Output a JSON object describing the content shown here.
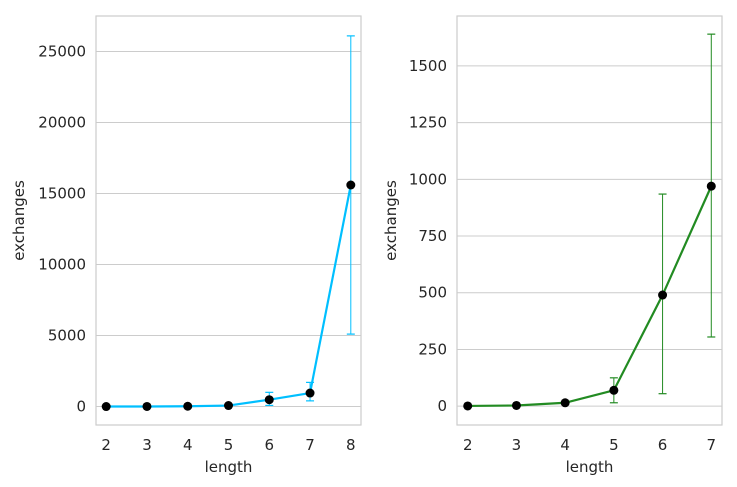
{
  "chart_data": [
    {
      "type": "line",
      "xlabel": "length",
      "ylabel": "exchanges",
      "x": [
        2,
        3,
        4,
        5,
        6,
        7,
        8
      ],
      "xticks": [
        "2",
        "3",
        "4",
        "5",
        "6",
        "7",
        "8"
      ],
      "yticks": [
        "0",
        "5000",
        "10000",
        "15000",
        "20000",
        "25000"
      ],
      "ylim": [
        -1300,
        27500
      ],
      "grid": "horizontal",
      "series": [
        {
          "color": "#00bfff",
          "errorbar_color": "#00bfff",
          "marker_color": "#000000",
          "values": [
            1,
            5,
            20,
            70,
            480,
            950,
            15600
          ],
          "err_low": [
            1,
            5,
            20,
            70,
            80,
            400,
            5100
          ],
          "err_high": [
            1,
            5,
            20,
            70,
            1000,
            1700,
            26100
          ]
        }
      ]
    },
    {
      "type": "line",
      "xlabel": "length",
      "ylabel": "exchanges",
      "x": [
        2,
        3,
        4,
        5,
        6,
        7
      ],
      "xticks": [
        "2",
        "3",
        "4",
        "5",
        "6",
        "7"
      ],
      "yticks": [
        "0",
        "250",
        "500",
        "750",
        "1000",
        "1250",
        "1500"
      ],
      "ylim": [
        -83,
        1720
      ],
      "grid": "horizontal",
      "series": [
        {
          "color": "#228b22",
          "errorbar_color": "#228b22",
          "marker_color": "#000000",
          "values": [
            1,
            3,
            15,
            70,
            490,
            970
          ],
          "err_low": [
            1,
            3,
            10,
            15,
            55,
            305
          ],
          "err_high": [
            1,
            3,
            20,
            125,
            935,
            1640
          ]
        }
      ]
    }
  ]
}
